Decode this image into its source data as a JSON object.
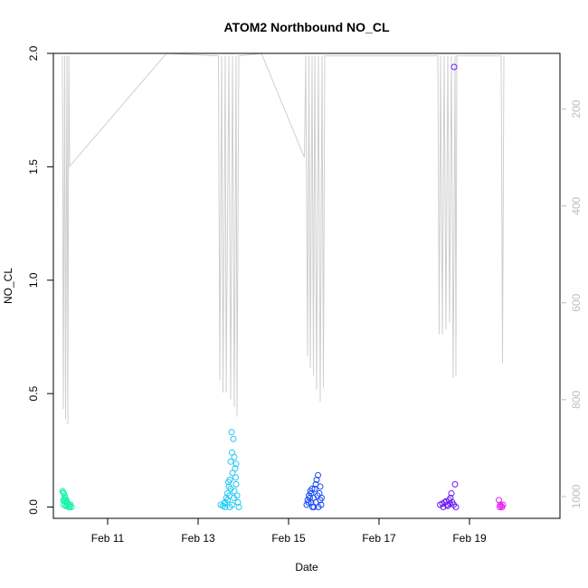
{
  "chart_data": {
    "type": "scatter",
    "title": "ATOM2 Northbound NO_CL",
    "xlabel": "Date",
    "ylabel": "NO_CL",
    "x_ticks": [
      "Feb 11",
      "Feb 13",
      "Feb 15",
      "Feb 17",
      "Feb 19"
    ],
    "x_tick_values": [
      11,
      13,
      15,
      17,
      19
    ],
    "xlim": [
      9.8,
      21.0
    ],
    "ylim": [
      -0.05,
      2.0
    ],
    "y_ticks": [
      "0.0",
      "0.5",
      "1.0",
      "1.5",
      "2.0"
    ],
    "y_tick_values": [
      0,
      0.5,
      1.0,
      1.5,
      2.0
    ],
    "y2_ticks": [
      "200",
      "400",
      "600",
      "800",
      "1000"
    ],
    "y2_tick_values": [
      200,
      400,
      600,
      800,
      1000
    ],
    "y2lim": [
      1045,
      85
    ],
    "y2_color": "#bdbdbd",
    "grid": false,
    "series": [
      {
        "color": "#19f5a8",
        "points": [
          [
            10.0,
            0.07
          ],
          [
            10.02,
            0.065
          ],
          [
            10.03,
            0.06
          ],
          [
            10.05,
            0.05
          ],
          [
            10.06,
            0.04
          ],
          [
            10.02,
            0.03
          ],
          [
            10.05,
            0.025
          ],
          [
            10.08,
            0.02
          ],
          [
            10.1,
            0.02
          ],
          [
            10.12,
            0.015
          ],
          [
            10.15,
            0.01
          ],
          [
            10.18,
            0.01
          ],
          [
            10.03,
            0.01
          ],
          [
            10.07,
            0.005
          ],
          [
            10.1,
            0.005
          ],
          [
            10.14,
            0.0
          ],
          [
            10.16,
            0.0
          ],
          [
            10.2,
            0.0
          ],
          [
            10.04,
            0.035
          ],
          [
            10.09,
            0.03
          ]
        ]
      },
      {
        "color": "#1fc8f5",
        "points": [
          [
            13.5,
            0.01
          ],
          [
            13.55,
            0.005
          ],
          [
            13.6,
            0.02
          ],
          [
            13.62,
            0.04
          ],
          [
            13.65,
            0.06
          ],
          [
            13.68,
            0.09
          ],
          [
            13.7,
            0.12
          ],
          [
            13.72,
            0.2
          ],
          [
            13.74,
            0.33
          ],
          [
            13.75,
            0.24
          ],
          [
            13.78,
            0.3
          ],
          [
            13.8,
            0.22
          ],
          [
            13.82,
            0.17
          ],
          [
            13.84,
            0.1
          ],
          [
            13.86,
            0.05
          ],
          [
            13.88,
            0.02
          ],
          [
            13.7,
            0.0
          ],
          [
            13.75,
            0.01
          ],
          [
            13.65,
            0.03
          ],
          [
            13.8,
            0.07
          ],
          [
            13.83,
            0.13
          ],
          [
            13.72,
            0.08
          ],
          [
            13.76,
            0.15
          ],
          [
            13.84,
            0.19
          ],
          [
            13.6,
            0.0
          ],
          [
            13.9,
            0.0
          ],
          [
            13.67,
            0.11
          ],
          [
            13.79,
            0.04
          ],
          [
            13.58,
            0.015
          ],
          [
            13.69,
            0.05
          ]
        ]
      },
      {
        "color": "#1a4cf5",
        "points": [
          [
            15.4,
            0.01
          ],
          [
            15.42,
            0.03
          ],
          [
            15.45,
            0.05
          ],
          [
            15.48,
            0.07
          ],
          [
            15.5,
            0.02
          ],
          [
            15.53,
            0.0
          ],
          [
            15.55,
            0.04
          ],
          [
            15.58,
            0.08
          ],
          [
            15.6,
            0.1
          ],
          [
            15.62,
            0.12
          ],
          [
            15.65,
            0.14
          ],
          [
            15.68,
            0.06
          ],
          [
            15.7,
            0.03
          ],
          [
            15.72,
            0.01
          ],
          [
            15.5,
            0.06
          ],
          [
            15.44,
            0.02
          ],
          [
            15.56,
            0.0
          ],
          [
            15.64,
            0.05
          ],
          [
            15.7,
            0.09
          ],
          [
            15.6,
            0.02
          ],
          [
            15.47,
            0.04
          ],
          [
            15.52,
            0.08
          ],
          [
            15.66,
            0.0
          ],
          [
            15.73,
            0.04
          ]
        ]
      },
      {
        "color": "#6a1cf5",
        "points": [
          [
            18.35,
            0.01
          ],
          [
            18.4,
            0.015
          ],
          [
            18.45,
            0.02
          ],
          [
            18.5,
            0.01
          ],
          [
            18.55,
            0.03
          ],
          [
            18.58,
            0.04
          ],
          [
            18.6,
            0.06
          ],
          [
            18.62,
            0.02
          ],
          [
            18.65,
            0.01
          ],
          [
            18.68,
            0.1
          ],
          [
            18.7,
            0.0
          ],
          [
            18.52,
            0.005
          ],
          [
            18.42,
            0.0
          ],
          [
            18.66,
            1.94
          ],
          [
            18.57,
            0.015
          ],
          [
            18.48,
            0.025
          ]
        ]
      },
      {
        "color": "#e61cf0",
        "points": [
          [
            19.65,
            0.03
          ],
          [
            19.68,
            0.01
          ],
          [
            19.7,
            0.005
          ],
          [
            19.72,
            0.0
          ],
          [
            19.74,
            0.01
          ],
          [
            19.67,
            0.0
          ]
        ]
      }
    ],
    "altitude_trace": {
      "color": "#cfcfcf",
      "points": [
        [
          10.0,
          90
        ],
        [
          10.02,
          820
        ],
        [
          10.05,
          90
        ],
        [
          10.07,
          840
        ],
        [
          10.1,
          90
        ],
        [
          10.12,
          850
        ],
        [
          10.14,
          90
        ],
        [
          10.16,
          318
        ],
        [
          12.3,
          85
        ],
        [
          13.45,
          90
        ],
        [
          13.48,
          760
        ],
        [
          13.52,
          90
        ],
        [
          13.55,
          785
        ],
        [
          13.6,
          90
        ],
        [
          13.62,
          785
        ],
        [
          13.68,
          90
        ],
        [
          13.72,
          800
        ],
        [
          13.76,
          90
        ],
        [
          13.8,
          815
        ],
        [
          13.84,
          90
        ],
        [
          13.86,
          835
        ],
        [
          13.9,
          90
        ],
        [
          14.4,
          85
        ],
        [
          15.35,
          300
        ],
        [
          15.38,
          90
        ],
        [
          15.42,
          710
        ],
        [
          15.45,
          90
        ],
        [
          15.48,
          735
        ],
        [
          15.52,
          90
        ],
        [
          15.55,
          750
        ],
        [
          15.58,
          90
        ],
        [
          15.62,
          780
        ],
        [
          15.66,
          90
        ],
        [
          15.7,
          805
        ],
        [
          15.74,
          90
        ],
        [
          15.77,
          775
        ],
        [
          15.8,
          90
        ],
        [
          18.3,
          90
        ],
        [
          18.33,
          665
        ],
        [
          18.36,
          90
        ],
        [
          18.4,
          665
        ],
        [
          18.44,
          90
        ],
        [
          18.48,
          655
        ],
        [
          18.52,
          90
        ],
        [
          18.56,
          640
        ],
        [
          18.6,
          90
        ],
        [
          18.64,
          755
        ],
        [
          18.68,
          90
        ],
        [
          18.7,
          750
        ],
        [
          18.72,
          90
        ],
        [
          19.7,
          90
        ],
        [
          19.73,
          725
        ],
        [
          19.76,
          90
        ]
      ]
    }
  }
}
